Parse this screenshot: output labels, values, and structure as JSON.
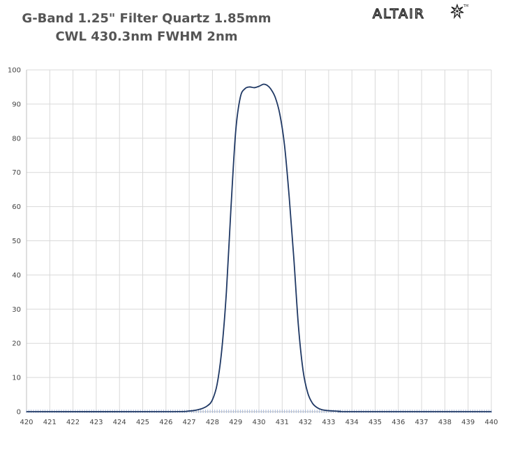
{
  "title": {
    "line1": "G-Band 1.25\" Filter Quartz 1.85mm",
    "line2": "CWL 430.3nm FWHM 2nm"
  },
  "logo": {
    "text": "ALTAIR",
    "trademark": "TM",
    "icon": "star-burst-icon"
  },
  "colors": {
    "curve": "#1f3864",
    "grid": "#d9d9d9",
    "axis": "#bfbfbf",
    "minor_tick": "#9db0d6",
    "title": "#555555"
  },
  "chart_data": {
    "type": "line",
    "title": "G-Band 1.25\" Filter Quartz 1.85mm CWL 430.3nm FWHM 2nm",
    "xlabel": "",
    "ylabel": "",
    "xlim": [
      420,
      440
    ],
    "ylim": [
      0,
      100
    ],
    "x_ticks": [
      "420",
      "421",
      "422",
      "423",
      "424",
      "425",
      "426",
      "427",
      "428",
      "429",
      "430",
      "431",
      "432",
      "433",
      "434",
      "435",
      "436",
      "437",
      "438",
      "439",
      "440"
    ],
    "y_ticks": [
      "0",
      "10",
      "20",
      "30",
      "40",
      "50",
      "60",
      "70",
      "80",
      "90",
      "100"
    ],
    "grid": true,
    "legend": "none",
    "series": [
      {
        "x": [
          420,
          426,
          427,
          427.5,
          427.8,
          428.0,
          428.2,
          428.4,
          428.6,
          428.8,
          429.0,
          429.2,
          429.4,
          429.6,
          429.8,
          430.0,
          430.2,
          430.35,
          430.5,
          430.7,
          430.9,
          431.1,
          431.3,
          431.5,
          431.7,
          431.9,
          432.1,
          432.3,
          432.5,
          432.7,
          433.0,
          433.5,
          434.0,
          440
        ],
        "y": [
          0,
          0,
          0.2,
          0.8,
          1.8,
          3.5,
          8,
          18,
          35,
          60,
          82,
          92,
          94.5,
          95,
          94.8,
          95.2,
          95.8,
          95.5,
          94.5,
          92,
          87,
          78,
          63,
          45,
          25,
          12,
          5.5,
          2.5,
          1.2,
          0.6,
          0.3,
          0.1,
          0,
          0
        ]
      }
    ]
  }
}
